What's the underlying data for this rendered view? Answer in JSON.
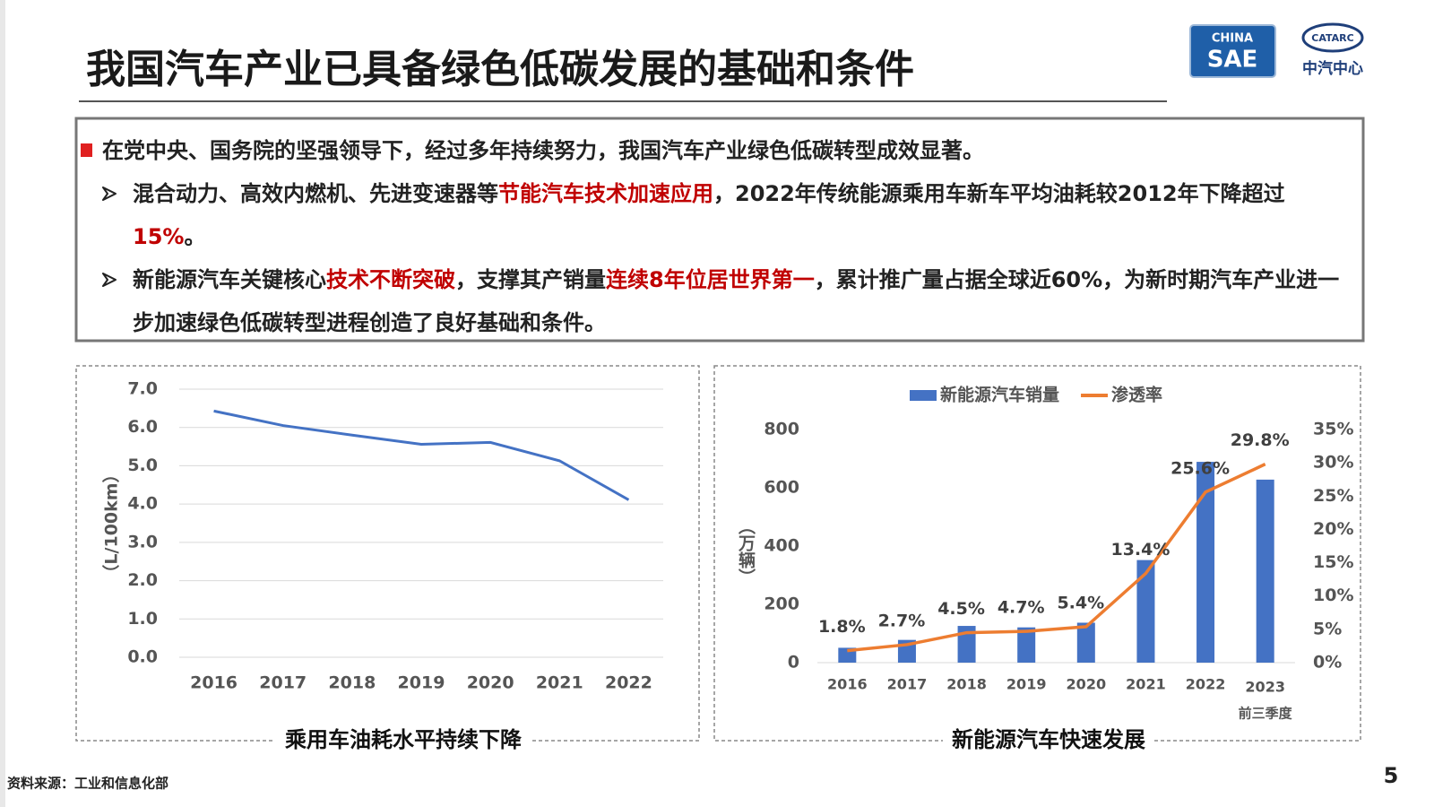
{
  "title": "我国汽车产业已具备绿色低碳发展的基础和条件",
  "logos": {
    "sae_top": "CHINA",
    "sae_bottom": "SAE",
    "catarc": "CATARC",
    "catarc_name": "中汽中心"
  },
  "bullets": [
    {
      "level": 1,
      "segments": [
        {
          "text": "在党中央、国务院的坚强领导下，经过多年持续努力，我国汽车产业绿色低碳转型成效显著。",
          "highlight": false
        }
      ]
    },
    {
      "level": 2,
      "segments": [
        {
          "text": "混合动力、高效内燃机、先进变速器等",
          "highlight": false
        },
        {
          "text": "节能汽车技术加速应用",
          "highlight": true
        },
        {
          "text": "，2022年传统能源乘用车新车平均油耗较2012年下降超过",
          "highlight": false
        },
        {
          "text": "15%",
          "highlight": true
        },
        {
          "text": "。",
          "highlight": false
        }
      ]
    },
    {
      "level": 2,
      "segments": [
        {
          "text": "新能源汽车关键核心",
          "highlight": false
        },
        {
          "text": "技术不断突破",
          "highlight": true
        },
        {
          "text": "，支撑其产销量",
          "highlight": false
        },
        {
          "text": "连续8年位居世界第一",
          "highlight": true
        },
        {
          "text": "，累计推广量占据全球近60%，为新时期汽车产业进一步加速绿色低碳转型进程创造了良好基础和条件。",
          "highlight": false
        }
      ]
    }
  ],
  "chart_data": [
    {
      "type": "line",
      "title": "乘用车油耗水平持续下降",
      "y_label": "（L/100km）",
      "categories": [
        "2016",
        "2017",
        "2018",
        "2019",
        "2020",
        "2021",
        "2022"
      ],
      "values": [
        6.43,
        6.05,
        5.8,
        5.56,
        5.61,
        5.13,
        4.11
      ],
      "color": "#4472c4",
      "ylim": [
        0,
        7
      ],
      "yticks": [
        {
          "value": 0,
          "label": "0.0"
        },
        {
          "value": 1,
          "label": "1.0"
        },
        {
          "value": 2,
          "label": "2.0"
        },
        {
          "value": 3,
          "label": "3.0"
        },
        {
          "value": 4,
          "label": "4.0"
        },
        {
          "value": 5,
          "label": "5.0"
        },
        {
          "value": 6,
          "label": "6.0"
        },
        {
          "value": 7,
          "label": "7.0"
        }
      ],
      "grid": true
    },
    {
      "type": "combo",
      "title": "新能源汽车快速发展",
      "y_label": "（万辆）",
      "categories": [
        "2016",
        "2017",
        "2018",
        "2019",
        "2020",
        "2021",
        "2022",
        "2023"
      ],
      "x_note": "前三季度",
      "series": [
        {
          "name": "新能源汽车销量",
          "type": "bar",
          "color": "#4472c4",
          "values": [
            51,
            78,
            126,
            121,
            137,
            352,
            689,
            628
          ]
        },
        {
          "name": "渗透率",
          "type": "line",
          "axis": "y2",
          "color": "#ed7d31",
          "values": [
            1.8,
            2.7,
            4.5,
            4.7,
            5.4,
            13.4,
            25.6,
            29.8
          ],
          "value_labels": [
            "1.8%",
            "2.7%",
            "4.5%",
            "4.7%",
            "5.4%",
            "13.4%",
            "25.6%",
            "29.8%"
          ]
        }
      ],
      "ylim": [
        0,
        800
      ],
      "yticks": [
        0,
        200,
        400,
        600,
        800
      ],
      "y2lim": [
        0,
        35
      ],
      "y2ticks": [
        {
          "value": 0,
          "label": "0%"
        },
        {
          "value": 5,
          "label": "5%"
        },
        {
          "value": 10,
          "label": "10%"
        },
        {
          "value": 15,
          "label": "15%"
        },
        {
          "value": 20,
          "label": "20%"
        },
        {
          "value": 25,
          "label": "25%"
        },
        {
          "value": 30,
          "label": "30%"
        },
        {
          "value": 35,
          "label": "35%"
        }
      ],
      "legend": "top",
      "grid": false
    }
  ],
  "source": "资料来源：工业和信息化部",
  "page_number": "5"
}
